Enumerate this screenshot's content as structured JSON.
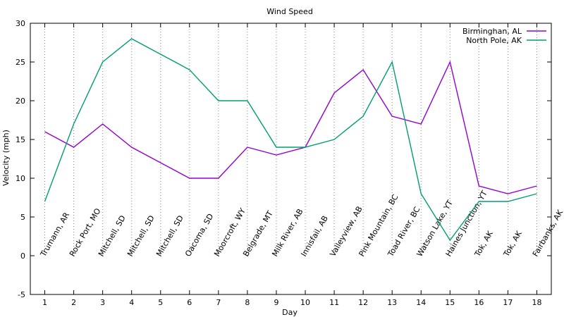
{
  "chart_data": {
    "type": "line",
    "title": "Wind Speed",
    "xlabel": "Day",
    "ylabel": "Velocity (mph)",
    "xlim": [
      0.5,
      18.5
    ],
    "ylim": [
      -5,
      30
    ],
    "xticks": [
      1,
      2,
      3,
      4,
      5,
      6,
      7,
      8,
      9,
      10,
      11,
      12,
      13,
      14,
      15,
      16,
      17,
      18
    ],
    "yticks": [
      -5,
      0,
      5,
      10,
      15,
      20,
      25,
      30
    ],
    "legend_position": "top-right",
    "grid": "dotted vertical lines from each annotation up to the top",
    "x": [
      1,
      2,
      3,
      4,
      5,
      6,
      7,
      8,
      9,
      10,
      11,
      12,
      13,
      14,
      15,
      16,
      17,
      18
    ],
    "series": [
      {
        "name": "Birminghan, AL",
        "color": "#9400d3",
        "values": [
          16,
          14,
          17,
          14,
          12,
          10,
          10,
          14,
          13,
          14,
          21,
          24,
          18,
          17,
          25,
          9,
          8,
          9
        ]
      },
      {
        "name": "North Pole, AK",
        "color": "#009e73",
        "values": [
          7,
          17,
          25,
          28,
          26,
          24,
          20,
          20,
          14,
          14,
          15,
          18,
          25,
          8,
          2,
          7,
          7,
          8
        ]
      }
    ],
    "annotations": [
      "Trumann, AR",
      "Rock Port, MO",
      "Mitchell, SD",
      "Mitchell, SD",
      "Mitchell, SD",
      "Oacoma, SD",
      "Moorcroft, WY",
      "Belgrade, MT",
      "Milk River, AB",
      "Innisfail, AB",
      "Valleyview, AB",
      "Pink Mountain, BC",
      "Toad River, BC",
      "Watson Lake, YT",
      "Haines Junction, YT",
      "Tok, AK",
      "Tok, AK",
      "Fairbanks, AK"
    ]
  }
}
